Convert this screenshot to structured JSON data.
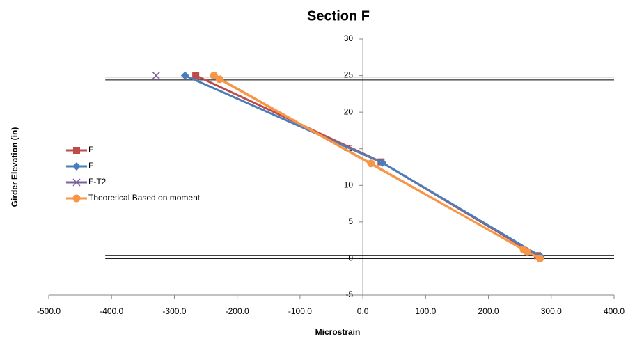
{
  "chart_data": {
    "type": "scatter-line",
    "title": "Section F",
    "x_label": "Microstrain",
    "y_label": "Girder Elevation (in)",
    "xlim": [
      -500,
      400
    ],
    "xticks": [
      {
        "value": -500,
        "label": "-500.0"
      },
      {
        "value": -400,
        "label": "-400.0"
      },
      {
        "value": -300,
        "label": "-300.0"
      },
      {
        "value": -200,
        "label": "-200.0"
      },
      {
        "value": -100,
        "label": "-100.0"
      },
      {
        "value": 0,
        "label": "0.0"
      },
      {
        "value": 100,
        "label": "100.0"
      },
      {
        "value": 200,
        "label": "200.0"
      },
      {
        "value": 300,
        "label": "300.0"
      },
      {
        "value": 400,
        "label": "400.0"
      }
    ],
    "ylim": [
      -5,
      30
    ],
    "yticks": [
      -5,
      0,
      5,
      10,
      15,
      20,
      25,
      30
    ],
    "hlines": [
      24.8,
      24.4,
      0.4,
      0
    ],
    "hline_start": -410,
    "legend": "left",
    "series": [
      {
        "name": "F",
        "color": "#be4b48",
        "marker": "square",
        "x": [
          -266,
          29,
          278
        ],
        "values": [
          25,
          13.2,
          0.4
        ]
      },
      {
        "name": "F",
        "color": "#4a7ebb",
        "marker": "diamond",
        "x": [
          -283,
          31,
          283
        ],
        "values": [
          25,
          13.1,
          0.3
        ]
      },
      {
        "name": "F-T2",
        "color": "#7d60a0",
        "marker": "x",
        "x": [
          -329
        ],
        "values": [
          25
        ]
      },
      {
        "name": "Theoretical Based on moment",
        "color": "#f79646",
        "marker": "circle",
        "x": [
          -237,
          13,
          256,
          262,
          282,
          -228
        ],
        "values": [
          25,
          13,
          1.2,
          0.9,
          0,
          24.5
        ]
      }
    ]
  }
}
